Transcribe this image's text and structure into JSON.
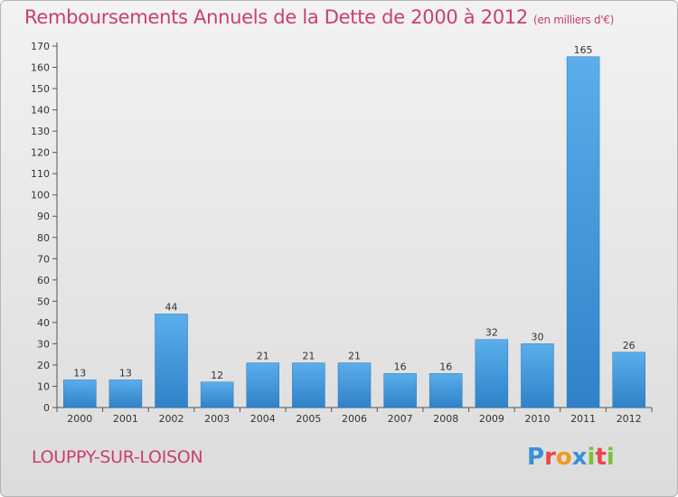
{
  "title": "Remboursements Annuels de la Dette de 2000 à 2012",
  "unit": "(en milliers d'€)",
  "commune": "LOUPPY-SUR-LOISON",
  "logo": {
    "text": "Proxiti",
    "letters": [
      {
        "ch": "P",
        "color": "#3a8fd9"
      },
      {
        "ch": "r",
        "color": "#e8454f"
      },
      {
        "ch": "o",
        "color": "#f29a1f"
      },
      {
        "ch": "x",
        "color": "#3a8fd9"
      },
      {
        "ch": "i",
        "color": "#7cbf3a"
      },
      {
        "ch": "t",
        "color": "#e8454f"
      },
      {
        "ch": "i",
        "color": "#7cbf3a"
      }
    ]
  },
  "colors": {
    "bar_top": "#5aaeea",
    "bar_bottom": "#2f82c8",
    "accent": "#cc3e6c"
  },
  "chart_data": {
    "type": "bar",
    "categories": [
      "2000",
      "2001",
      "2002",
      "2003",
      "2004",
      "2005",
      "2006",
      "2007",
      "2008",
      "2009",
      "2010",
      "2011",
      "2012"
    ],
    "values": [
      13,
      13,
      44,
      12,
      21,
      21,
      21,
      16,
      16,
      32,
      30,
      165,
      26
    ],
    "ylim": [
      0,
      170
    ],
    "yticks": [
      0,
      10,
      20,
      30,
      40,
      50,
      60,
      70,
      80,
      90,
      100,
      110,
      120,
      130,
      140,
      150,
      160,
      170
    ],
    "grid": false
  }
}
